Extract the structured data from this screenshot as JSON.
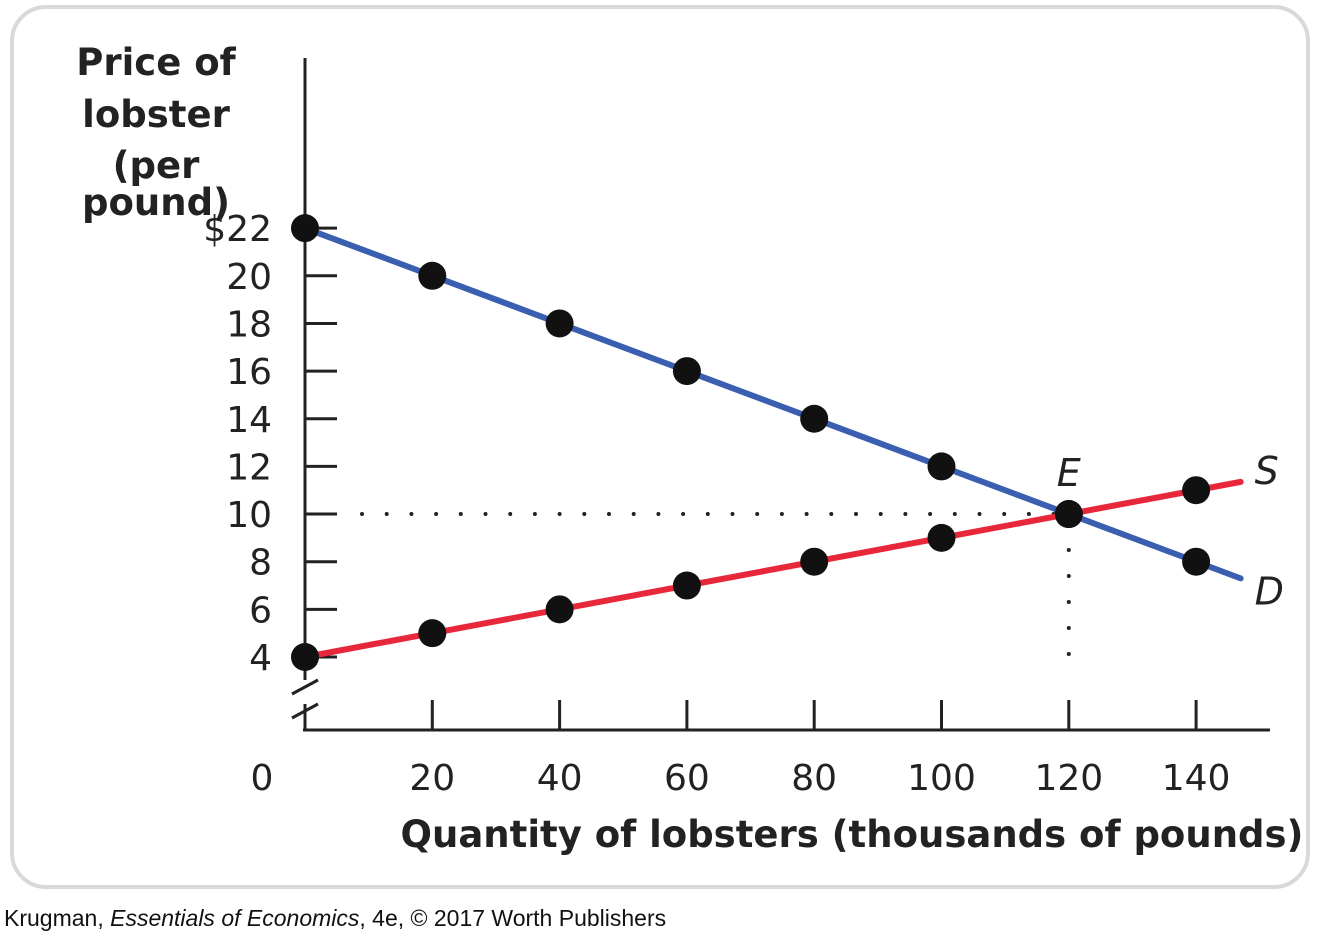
{
  "chart_data": {
    "type": "line",
    "ylabel_lines": [
      "Price of",
      "lobster",
      "(per pound)"
    ],
    "xlabel": "Quantity of lobsters (thousands of pounds)",
    "x_ticks": [
      20,
      40,
      60,
      80,
      100,
      120,
      140
    ],
    "x_origin_label": "0",
    "y_ticks": [
      {
        "value": 22,
        "label": "$22"
      },
      {
        "value": 20,
        "label": "20"
      },
      {
        "value": 18,
        "label": "18"
      },
      {
        "value": 16,
        "label": "16"
      },
      {
        "value": 14,
        "label": "14"
      },
      {
        "value": 12,
        "label": "12"
      },
      {
        "value": 10,
        "label": "10"
      },
      {
        "value": 8,
        "label": "8"
      },
      {
        "value": 6,
        "label": "6"
      },
      {
        "value": 4,
        "label": "4"
      }
    ],
    "xlim": [
      0,
      150
    ],
    "ylim": [
      0,
      22
    ],
    "y_axis_break": true,
    "series": [
      {
        "name": "D",
        "color": "#3b5fb0",
        "points": [
          [
            0,
            22
          ],
          [
            20,
            20
          ],
          [
            40,
            18
          ],
          [
            60,
            16
          ],
          [
            80,
            14
          ],
          [
            100,
            12
          ],
          [
            120,
            10
          ],
          [
            140,
            8
          ]
        ],
        "line_end": [
          147,
          7.3
        ]
      },
      {
        "name": "S",
        "color": "#e8283a",
        "points": [
          [
            0,
            4
          ],
          [
            20,
            5
          ],
          [
            40,
            6
          ],
          [
            60,
            7
          ],
          [
            80,
            8
          ],
          [
            100,
            9
          ],
          [
            120,
            10
          ],
          [
            140,
            11
          ]
        ],
        "line_end": [
          147,
          11.35
        ]
      }
    ],
    "equilibrium": {
      "label": "E",
      "x": 120,
      "y": 10
    }
  },
  "credit": {
    "author": "Krugman, ",
    "book": "Essentials of Economics",
    "rest": ", 4e, © 2017 Worth Publishers"
  }
}
